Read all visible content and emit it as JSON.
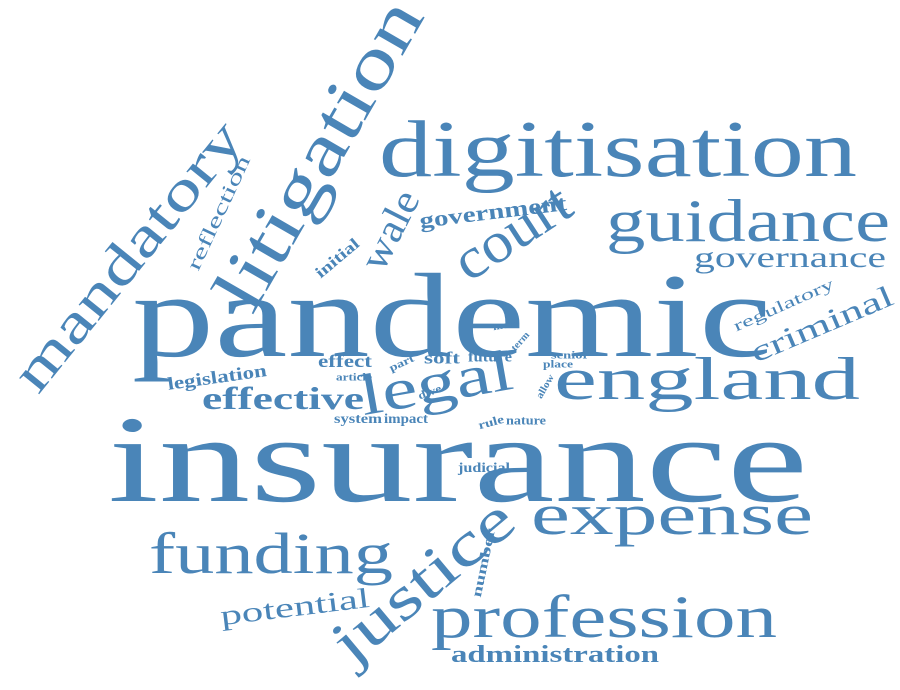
{
  "color": "#4a85b8",
  "words": [
    {
      "id": "pandemic",
      "text": "pandemic"
    },
    {
      "id": "insurance",
      "text": "insurance"
    },
    {
      "id": "digitisation",
      "text": "digitisation"
    },
    {
      "id": "litigation",
      "text": "litigation"
    },
    {
      "id": "mandatory",
      "text": "mandatory"
    },
    {
      "id": "court",
      "text": "court"
    },
    {
      "id": "guidance",
      "text": "guidance"
    },
    {
      "id": "governance",
      "text": "governance"
    },
    {
      "id": "wale",
      "text": "wale"
    },
    {
      "id": "government",
      "text": "government"
    },
    {
      "id": "initial",
      "text": "initial"
    },
    {
      "id": "reflection",
      "text": "reflection"
    },
    {
      "id": "regulatory",
      "text": "regulatory"
    },
    {
      "id": "criminal",
      "text": "criminal"
    },
    {
      "id": "legal",
      "text": "legal"
    },
    {
      "id": "england",
      "text": "england"
    },
    {
      "id": "effective",
      "text": "effective"
    },
    {
      "id": "legislation",
      "text": "legislation"
    },
    {
      "id": "effect",
      "text": "effect"
    },
    {
      "id": "article",
      "text": "article"
    },
    {
      "id": "part",
      "text": "part"
    },
    {
      "id": "soft",
      "text": "soft"
    },
    {
      "id": "future",
      "text": "future"
    },
    {
      "id": "more",
      "text": "more"
    },
    {
      "id": "term",
      "text": "term"
    },
    {
      "id": "senior",
      "text": "senior"
    },
    {
      "id": "place",
      "text": "place"
    },
    {
      "id": "allow",
      "text": "allow"
    },
    {
      "id": "dive",
      "text": "dive"
    },
    {
      "id": "system",
      "text": "system"
    },
    {
      "id": "impact",
      "text": "impact"
    },
    {
      "id": "rule",
      "text": "rule"
    },
    {
      "id": "nature",
      "text": "nature"
    },
    {
      "id": "judicial",
      "text": "judicial"
    },
    {
      "id": "expense",
      "text": "expense"
    },
    {
      "id": "justice",
      "text": "justice"
    },
    {
      "id": "funding",
      "text": "funding"
    },
    {
      "id": "number",
      "text": "number"
    },
    {
      "id": "potential",
      "text": "potential"
    },
    {
      "id": "profession",
      "text": "profession"
    },
    {
      "id": "administration",
      "text": "administration"
    }
  ]
}
